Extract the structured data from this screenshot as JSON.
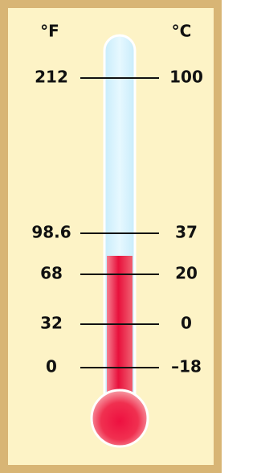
{
  "scales": {
    "fahrenheit": {
      "unit": "°F"
    },
    "celsius": {
      "unit": "°C"
    }
  },
  "marks": [
    {
      "fahrenheit": "212",
      "celsius": "100"
    },
    {
      "fahrenheit": "98.6",
      "celsius": "37"
    },
    {
      "fahrenheit": "68",
      "celsius": "20"
    },
    {
      "fahrenheit": "32",
      "celsius": "0"
    },
    {
      "fahrenheit": "0",
      "celsius": "–18"
    }
  ]
}
